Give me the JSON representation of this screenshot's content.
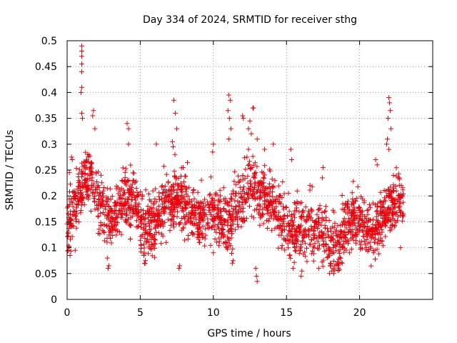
{
  "chart_data": {
    "type": "scatter",
    "title": "Day 334 of 2024, SRMTID for receiver sthg",
    "xlabel": "GPS time / hours",
    "ylabel": "SRMTID / TECUs",
    "xlim": [
      0,
      25
    ],
    "ylim": [
      0,
      0.5
    ],
    "x_ticks": [
      0,
      5,
      10,
      15,
      20
    ],
    "x_tick_labels": [
      "0",
      "5",
      "10",
      "15",
      "20"
    ],
    "y_ticks": [
      0,
      0.05,
      0.1,
      0.15,
      0.2,
      0.25,
      0.3,
      0.35,
      0.4,
      0.45,
      0.5
    ],
    "y_tick_labels": [
      "0",
      "0.05",
      "0.1",
      "0.15",
      "0.2",
      "0.25",
      "0.3",
      "0.35",
      "0.4",
      "0.45",
      "0.5"
    ],
    "grid": true,
    "marker": "+",
    "series": [
      {
        "name": "sthg",
        "color": "#e8000b",
        "baseline": {
          "x": [
            0,
            0.5,
            1,
            1.5,
            2,
            2.5,
            3,
            3.5,
            4,
            4.5,
            5,
            5.5,
            6,
            6.5,
            7,
            7.5,
            8,
            8.5,
            9,
            9.5,
            10,
            10.5,
            11,
            11.5,
            12,
            12.5,
            13,
            13.5,
            14,
            14.5,
            15,
            15.5,
            16,
            16.5,
            17,
            17.5,
            18,
            18.5,
            19,
            19.5,
            20,
            20.5,
            21,
            21.5,
            22,
            22.5,
            23
          ],
          "y": [
            0.15,
            0.17,
            0.22,
            0.24,
            0.2,
            0.17,
            0.15,
            0.17,
            0.19,
            0.19,
            0.15,
            0.14,
            0.15,
            0.17,
            0.19,
            0.2,
            0.19,
            0.17,
            0.16,
            0.16,
            0.17,
            0.15,
            0.14,
            0.17,
            0.2,
            0.22,
            0.21,
            0.2,
            0.19,
            0.16,
            0.14,
            0.13,
            0.13,
            0.14,
            0.14,
            0.13,
            0.11,
            0.1,
            0.14,
            0.16,
            0.15,
            0.14,
            0.13,
            0.16,
            0.18,
            0.19,
            0.19
          ]
        },
        "spread": 0.04,
        "n_points": 2200,
        "x_range": [
          0,
          23
        ],
        "outliers": [
          {
            "x": 1.0,
            "y": 0.49
          },
          {
            "x": 1.0,
            "y": 0.48
          },
          {
            "x": 1.0,
            "y": 0.47
          },
          {
            "x": 1.0,
            "y": 0.455
          },
          {
            "x": 1.0,
            "y": 0.44
          },
          {
            "x": 1.0,
            "y": 0.41
          },
          {
            "x": 0.95,
            "y": 0.4
          },
          {
            "x": 1.0,
            "y": 0.36
          },
          {
            "x": 1.05,
            "y": 0.35
          },
          {
            "x": 1.8,
            "y": 0.365
          },
          {
            "x": 1.75,
            "y": 0.355
          },
          {
            "x": 1.9,
            "y": 0.33
          },
          {
            "x": 0.3,
            "y": 0.275
          },
          {
            "x": 0.35,
            "y": 0.27
          },
          {
            "x": 0.15,
            "y": 0.245
          },
          {
            "x": 4.1,
            "y": 0.34
          },
          {
            "x": 4.2,
            "y": 0.33
          },
          {
            "x": 4.2,
            "y": 0.3
          },
          {
            "x": 7.3,
            "y": 0.385
          },
          {
            "x": 7.4,
            "y": 0.36
          },
          {
            "x": 7.5,
            "y": 0.33
          },
          {
            "x": 7.2,
            "y": 0.305
          },
          {
            "x": 7.25,
            "y": 0.295
          },
          {
            "x": 6.1,
            "y": 0.3
          },
          {
            "x": 10.0,
            "y": 0.3
          },
          {
            "x": 9.95,
            "y": 0.285
          },
          {
            "x": 11.05,
            "y": 0.395
          },
          {
            "x": 11.15,
            "y": 0.385
          },
          {
            "x": 11.0,
            "y": 0.365
          },
          {
            "x": 11.1,
            "y": 0.35
          },
          {
            "x": 11.2,
            "y": 0.33
          },
          {
            "x": 11.05,
            "y": 0.31
          },
          {
            "x": 12.0,
            "y": 0.355
          },
          {
            "x": 12.05,
            "y": 0.35
          },
          {
            "x": 12.4,
            "y": 0.33
          },
          {
            "x": 12.5,
            "y": 0.345
          },
          {
            "x": 12.7,
            "y": 0.37
          },
          {
            "x": 12.75,
            "y": 0.37
          },
          {
            "x": 12.6,
            "y": 0.32
          },
          {
            "x": 13.0,
            "y": 0.31
          },
          {
            "x": 13.5,
            "y": 0.29
          },
          {
            "x": 14.1,
            "y": 0.3
          },
          {
            "x": 12.4,
            "y": 0.29
          },
          {
            "x": 12.3,
            "y": 0.275
          },
          {
            "x": 15.3,
            "y": 0.29
          },
          {
            "x": 15.35,
            "y": 0.27
          },
          {
            "x": 17.5,
            "y": 0.255
          },
          {
            "x": 17.45,
            "y": 0.235
          },
          {
            "x": 21.1,
            "y": 0.27
          },
          {
            "x": 21.2,
            "y": 0.26
          },
          {
            "x": 22.0,
            "y": 0.39
          },
          {
            "x": 22.05,
            "y": 0.38
          },
          {
            "x": 22.1,
            "y": 0.365
          },
          {
            "x": 21.95,
            "y": 0.35
          },
          {
            "x": 22.15,
            "y": 0.33
          },
          {
            "x": 21.9,
            "y": 0.31
          },
          {
            "x": 21.85,
            "y": 0.3
          },
          {
            "x": 22.0,
            "y": 0.29
          },
          {
            "x": 2.8,
            "y": 0.06
          },
          {
            "x": 2.85,
            "y": 0.065
          },
          {
            "x": 2.75,
            "y": 0.08
          },
          {
            "x": 5.3,
            "y": 0.07
          },
          {
            "x": 5.35,
            "y": 0.075
          },
          {
            "x": 7.65,
            "y": 0.06
          },
          {
            "x": 7.7,
            "y": 0.065
          },
          {
            "x": 10.0,
            "y": 0.09
          },
          {
            "x": 11.3,
            "y": 0.07
          },
          {
            "x": 11.35,
            "y": 0.075
          },
          {
            "x": 13.0,
            "y": 0.035
          },
          {
            "x": 12.95,
            "y": 0.045
          },
          {
            "x": 12.9,
            "y": 0.06
          },
          {
            "x": 16.0,
            "y": 0.045
          },
          {
            "x": 16.05,
            "y": 0.055
          },
          {
            "x": 17.2,
            "y": 0.06
          },
          {
            "x": 18.1,
            "y": 0.055
          },
          {
            "x": 18.2,
            "y": 0.06
          },
          {
            "x": 18.3,
            "y": 0.065
          },
          {
            "x": 18.0,
            "y": 0.07
          },
          {
            "x": 18.5,
            "y": 0.07
          },
          {
            "x": 0.2,
            "y": 0.085
          },
          {
            "x": 0.1,
            "y": 0.095
          },
          {
            "x": 0.55,
            "y": 0.095
          },
          {
            "x": 20.95,
            "y": 0.09
          },
          {
            "x": 21.05,
            "y": 0.095
          },
          {
            "x": 22.8,
            "y": 0.1
          }
        ]
      }
    ]
  }
}
